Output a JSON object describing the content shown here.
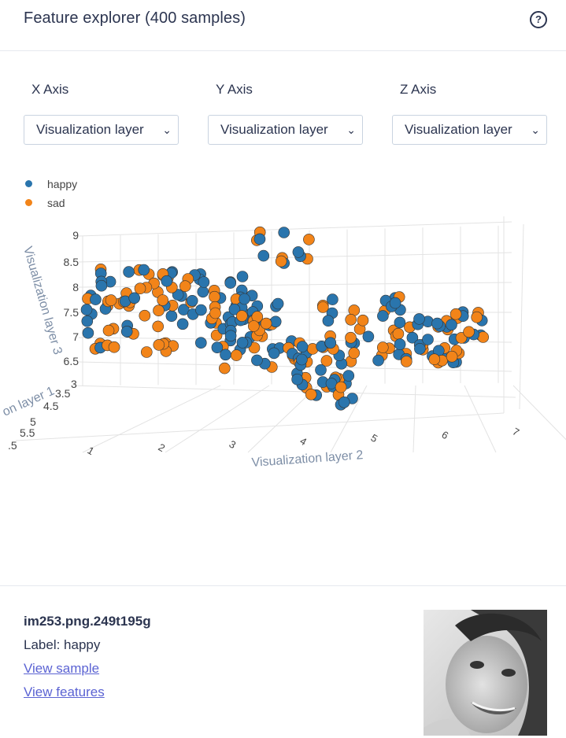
{
  "header": {
    "title": "Feature explorer (400 samples)",
    "help_icon": "question-circle-icon"
  },
  "axes": [
    {
      "label": "X Axis",
      "selected": "Visualization layer"
    },
    {
      "label": "Y Axis",
      "selected": "Visualization layer"
    },
    {
      "label": "Z Axis",
      "selected": "Visualization layer"
    }
  ],
  "legend": [
    {
      "name": "happy",
      "color": "#2a75ad"
    },
    {
      "name": "sad",
      "color": "#f28419"
    }
  ],
  "chart_data": {
    "type": "scatter",
    "title": "",
    "series": [
      {
        "name": "happy",
        "color": "#2a75ad"
      },
      {
        "name": "sad",
        "color": "#f28419"
      }
    ],
    "axes_labels": {
      "x": "Visualization layer 2",
      "y": "Visualization layer 3",
      "z": "on layer 1"
    },
    "x_ticks": [
      "1",
      "2",
      "3",
      "4",
      "5",
      "6",
      "7"
    ],
    "y_ticks": [
      "6.5",
      "7",
      "7.5",
      "8",
      "8.5",
      "9"
    ],
    "z_ticks": [
      ".5",
      "5.5",
      "5",
      "4.5",
      "3.5",
      "3"
    ]
  },
  "sample": {
    "name": "im253.png.249t195g",
    "label": "Label: happy",
    "view_sample": "View sample",
    "view_features": "View features"
  }
}
